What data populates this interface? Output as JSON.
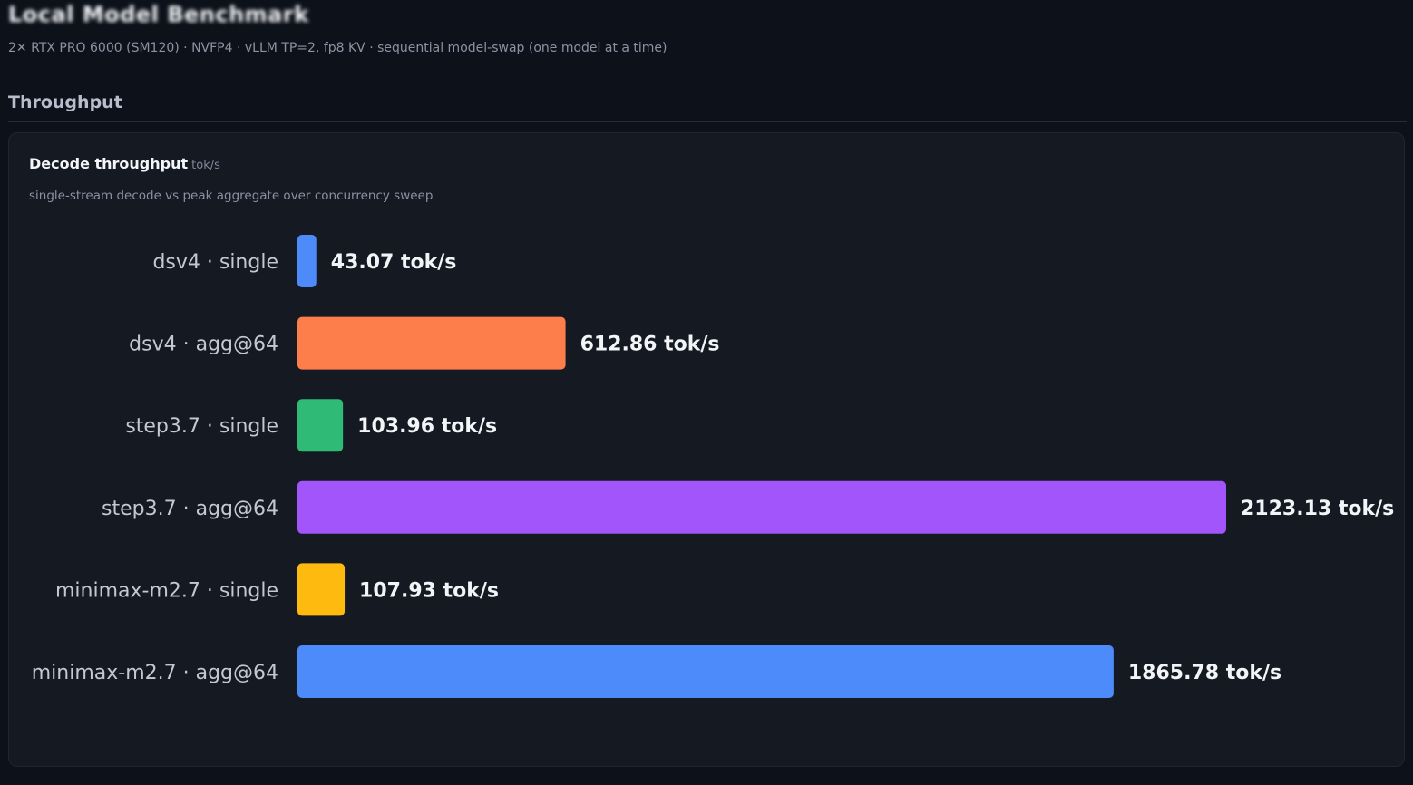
{
  "header": {
    "title": "Local Model Benchmark",
    "subtitle": "2✕ RTX PRO 6000 (SM120) · NVFP4 · vLLM TP=2, fp8 KV · sequential model-swap (one model at a time)"
  },
  "section": {
    "title": "Throughput"
  },
  "chart_data": {
    "type": "bar",
    "orientation": "horizontal",
    "title": "Decode throughput",
    "unit": "tok/s",
    "subtitle": "single-stream decode vs peak aggregate over concurrency sweep",
    "categories": [
      "dsv4 · single",
      "dsv4 · agg@64",
      "step3.7 · single",
      "step3.7 · agg@64",
      "minimax-m2.7 · single",
      "minimax-m2.7 · agg@64"
    ],
    "values": [
      43.07,
      612.86,
      103.96,
      2123.13,
      107.93,
      1865.78
    ],
    "value_labels": [
      "43.07 tok/s",
      "612.86 tok/s",
      "103.96 tok/s",
      "2123.13 tok/s",
      "107.93 tok/s",
      "1865.78 tok/s"
    ],
    "colors": [
      "#4d8bfa",
      "#fe7e4b",
      "#2fbb76",
      "#a155fa",
      "#feba0f",
      "#4d8bfa"
    ],
    "xlim": [
      0,
      2123.13
    ],
    "grid": false,
    "legend": "none"
  }
}
